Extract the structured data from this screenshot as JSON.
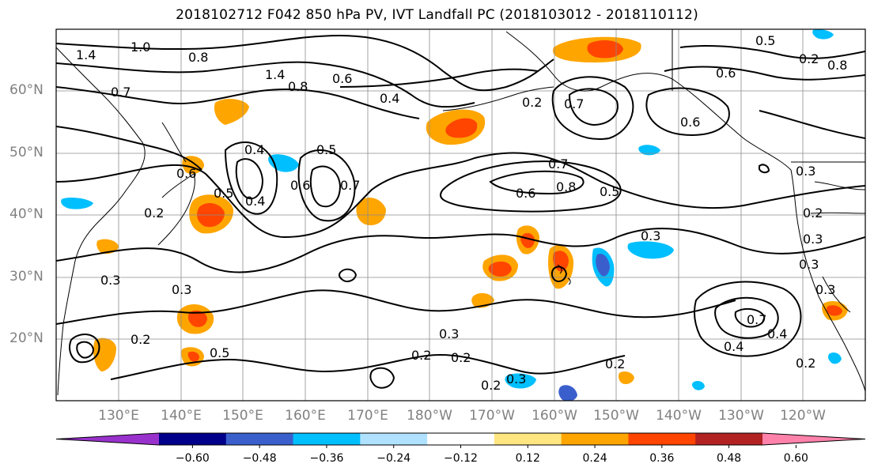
{
  "title": "2018102712 F042 850 hPa PV, IVT Landfall PC (2018103012 - 2018110112)",
  "map": {
    "lat_labels": [
      "60°N",
      "50°N",
      "40°N",
      "30°N",
      "20°N"
    ],
    "lon_labels": [
      "130°E",
      "140°E",
      "150°E",
      "160°E",
      "170°E",
      "180°W",
      "170°W",
      "160°W",
      "150°W",
      "140°W",
      "130°W",
      "120°W"
    ],
    "contour_labels": [
      "1.4",
      "1.0",
      "0.8",
      "0.7",
      "0.6",
      "0.4",
      "1.4",
      "0.8",
      "0.6",
      "0.4",
      "0.5",
      "0.6",
      "0.2",
      "0.7",
      "0.4",
      "0.5",
      "0.7",
      "0.6",
      "0.8",
      "0.6",
      "0.5",
      "0.3",
      "0.2",
      "0.7",
      "0.5",
      "0.2",
      "0.8",
      "0.6",
      "0.3",
      "0.3",
      "0.3",
      "0.2",
      "0.3",
      "0.2",
      "0.2",
      "0.2",
      "0.3",
      "0.7",
      "0.4",
      "0.2",
      "0.3",
      "0.3",
      "0.5",
      "0.2",
      "0.2",
      "0.4",
      "0.3"
    ],
    "grid": true,
    "contour_color": "#000000"
  },
  "colorbar": {
    "ticks": [
      "−0.60",
      "−0.48",
      "−0.36",
      "−0.24",
      "−0.12",
      "0.12",
      "0.24",
      "0.36",
      "0.48",
      "0.60"
    ],
    "colors": [
      "#9932cc",
      "#00008b",
      "#3a5fcd",
      "#00bfff",
      "#b0e2ff",
      "#ffffff",
      "#ffe680",
      "#ffa500",
      "#ff4500",
      "#b22222",
      "#ff82ab"
    ],
    "extend": "both"
  }
}
